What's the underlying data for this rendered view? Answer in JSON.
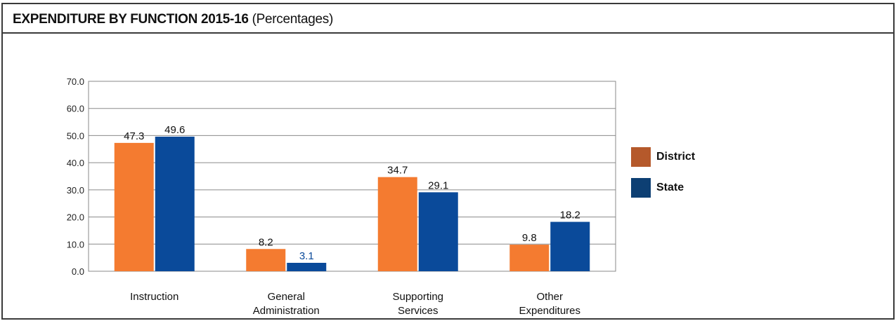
{
  "header": {
    "title_bold": "EXPENDITURE BY FUNCTION 2015-16",
    "title_rest": "(Percentages)"
  },
  "chart_data": {
    "type": "bar",
    "categories": [
      [
        "Instruction"
      ],
      [
        "General",
        "Administration"
      ],
      [
        "Supporting",
        "Services"
      ],
      [
        "Other",
        "Expenditures"
      ]
    ],
    "series": [
      {
        "name": "District",
        "values": [
          47.3,
          8.2,
          34.7,
          9.8
        ],
        "color": "#f47b30",
        "legend_color": "#b5592b"
      },
      {
        "name": "State",
        "values": [
          49.6,
          3.1,
          29.1,
          18.2
        ],
        "color": "#0a4a9a",
        "legend_color": "#0d3f73"
      }
    ],
    "value_labels": [
      "47.3",
      "49.6",
      "8.2",
      "3.1",
      "34.7",
      "29.1",
      "9.8",
      "18.2"
    ],
    "yticks": [
      "0.0",
      "10.0",
      "20.0",
      "30.0",
      "40.0",
      "50.0",
      "60.0",
      "70.0"
    ],
    "ylim": [
      0,
      70
    ],
    "grid": true,
    "legend_position": "right",
    "label_color_special": "#0a4a9a"
  }
}
